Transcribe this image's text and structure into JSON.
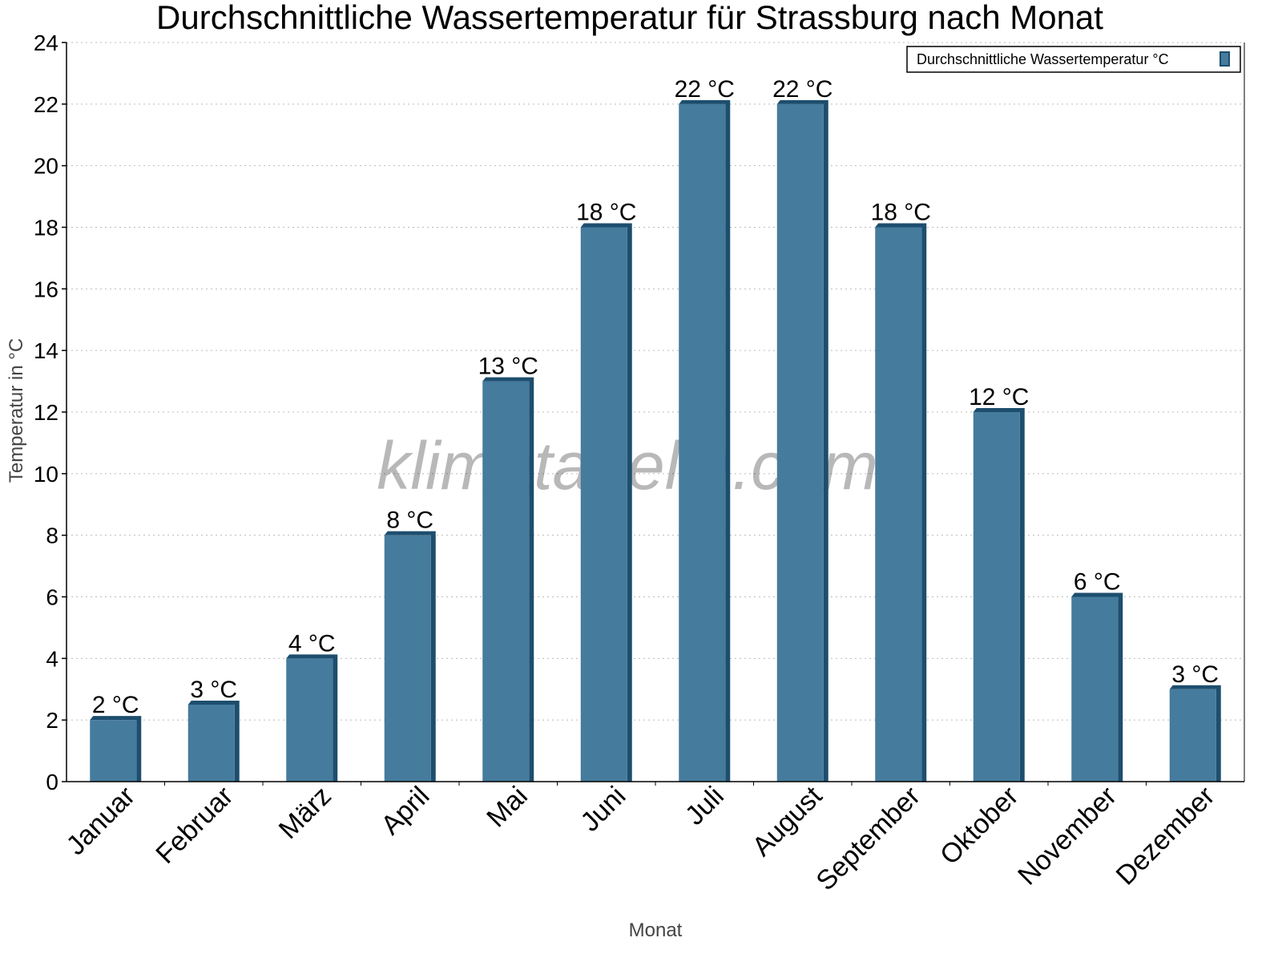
{
  "chart_data": {
    "type": "bar",
    "title": "Durchschnittliche Wassertemperatur für Strassburg nach Monat",
    "xlabel": "Monat",
    "ylabel": "Temperatur in °C",
    "ylim": [
      0,
      24
    ],
    "yticks": [
      "0",
      "2",
      "4",
      "6",
      "8",
      "10",
      "12",
      "14",
      "16",
      "18",
      "20",
      "22",
      "24"
    ],
    "grid": true,
    "legend_position": "top-right",
    "categories": [
      "Januar",
      "Februar",
      "März",
      "April",
      "Mai",
      "Juni",
      "Juli",
      "August",
      "September",
      "Oktober",
      "November",
      "Dezember"
    ],
    "series": [
      {
        "name": "Durchschnittliche Wassertemperatur °C",
        "values": [
          2,
          2.5,
          4,
          8,
          13,
          18,
          22,
          22,
          18,
          12,
          6,
          3
        ],
        "data_labels": [
          "2 °C",
          "3 °C",
          "4 °C",
          "8 °C",
          "13 °C",
          "18 °C",
          "22 °C",
          "22 °C",
          "18 °C",
          "12 °C",
          "6 °C",
          "3 °C"
        ],
        "color": "#457b9d",
        "shadow_color": "#1d4e6e"
      }
    ],
    "watermark": "klimatabelle.com"
  }
}
